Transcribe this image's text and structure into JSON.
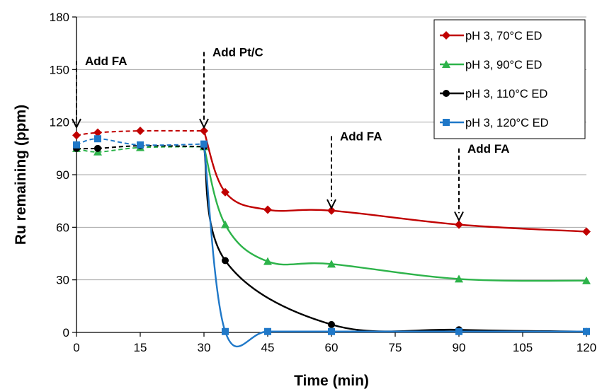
{
  "chart_data": {
    "type": "line",
    "title": "",
    "xlabel": "Time (min)",
    "ylabel": "Ru remaining (ppm)",
    "xlim": [
      0,
      120
    ],
    "ylim": [
      0,
      180
    ],
    "xticks": [
      0,
      15,
      30,
      45,
      60,
      75,
      90,
      105,
      120
    ],
    "yticks": [
      0,
      30,
      60,
      90,
      120,
      150,
      180
    ],
    "grid": "horizontal",
    "legend_position": "top-right",
    "series": [
      {
        "name": "pH 3, 70°C ED",
        "color": "#c00000",
        "marker": "diamond",
        "x": [
          0,
          5,
          15,
          30,
          35,
          45,
          60,
          90,
          120
        ],
        "y": [
          112.5,
          114,
          115,
          115,
          80,
          70,
          69.5,
          61.5,
          57.5
        ]
      },
      {
        "name": "pH 3, 90°C ED",
        "color": "#2db34a",
        "marker": "triangle",
        "x": [
          0,
          5,
          15,
          30,
          35,
          45,
          60,
          90,
          120
        ],
        "y": [
          105,
          103,
          105.5,
          106,
          61.5,
          40.5,
          39,
          30.5,
          29.5
        ]
      },
      {
        "name": "pH 3, 110°C ED",
        "color": "#000000",
        "marker": "circle",
        "x": [
          0,
          5,
          15,
          30,
          35,
          60,
          90,
          120
        ],
        "y": [
          105,
          105,
          106.5,
          106,
          41,
          4.5,
          1.5,
          0.5
        ]
      },
      {
        "name": "pH 3, 120°C ED",
        "color": "#1f78c8",
        "marker": "square",
        "x": [
          0,
          5,
          15,
          30,
          35,
          45,
          60,
          90,
          120
        ],
        "y": [
          107,
          110.5,
          107,
          107.5,
          0.5,
          0.5,
          0.5,
          0.5,
          0.5
        ]
      }
    ],
    "annotations": [
      {
        "text": "Add FA",
        "x": 0,
        "arrow_from_y": 155,
        "arrow_to_y": 117
      },
      {
        "text": "Add Pt/C",
        "x": 30,
        "arrow_from_y": 160,
        "arrow_to_y": 117
      },
      {
        "text": "Add FA",
        "x": 60,
        "arrow_from_y": 112,
        "arrow_to_y": 71
      },
      {
        "text": "Add FA",
        "x": 90,
        "arrow_from_y": 105,
        "arrow_to_y": 64
      }
    ]
  }
}
